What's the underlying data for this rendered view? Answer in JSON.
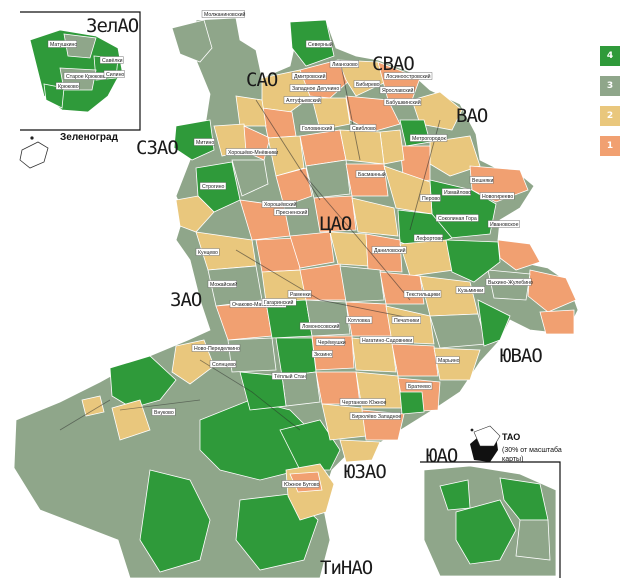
{
  "colors": {
    "c4": "#2f9a3a",
    "c3": "#8fa68a",
    "c2": "#e9c77d",
    "c1": "#f1a071",
    "border": "#3a3a3a"
  },
  "legend": [
    {
      "value": "4",
      "color": "#2f9a3a"
    },
    {
      "value": "3",
      "color": "#8fa68a"
    },
    {
      "value": "2",
      "color": "#e9c77d"
    },
    {
      "value": "1",
      "color": "#f1a071"
    }
  ],
  "okrugs": {
    "zelao": "ЗелАО",
    "sao": "САО",
    "svao": "СВАО",
    "vao": "ВАО",
    "szao": "СЗАО",
    "cao": "ЦАО",
    "zao": "ЗАО",
    "yuvao": "ЮВАО",
    "yuzao": "ЮЗАО",
    "yuao": "ЮАО",
    "tinao": "ТиНАО"
  },
  "zelenograd_label": "Зеленоград",
  "tao": {
    "title": "ТАО",
    "subtitle": "(30% от масштаба карты)"
  },
  "district_labels": [
    "Молжаниновский",
    "Северный",
    "Лианозово",
    "Дмитровский",
    "Бибирево",
    "Лосиноостровский",
    "Западное Дегунино",
    "Алтуфьевский",
    "Бабушкинский",
    "Ярославский",
    "Головинский",
    "Хорошёвский",
    "Свиблово",
    "Метрогородок",
    "Митино",
    "Строгино",
    "Хорошёво-Мнёвники",
    "Пресненский",
    "Басманный",
    "Соколиная Гора",
    "Измайлово",
    "Перово",
    "Ивановское",
    "Новогиреево",
    "Вешняки",
    "Кунцево",
    "Можайский",
    "Очаково-Матвеевское",
    "Тёплый Стан",
    "Раменки",
    "Гагаринский",
    "Ломоносовский",
    "Черёмушки",
    "Зюзино",
    "Котловка",
    "Даниловский",
    "Нагатино-Садовники",
    "Печатники",
    "Текстильщики",
    "Кузьминки",
    "Выхино-Жулебино",
    "Лефортово",
    "Марьино",
    "Братеево",
    "Бирюлёво Западное",
    "Чертаново Южное",
    "Южное Бутово",
    "Ново-Переделкино",
    "Солнцево",
    "Внуково",
    "Крюково",
    "Старое Крюково",
    "Савёлки",
    "Силино",
    "Матушкино"
  ]
}
